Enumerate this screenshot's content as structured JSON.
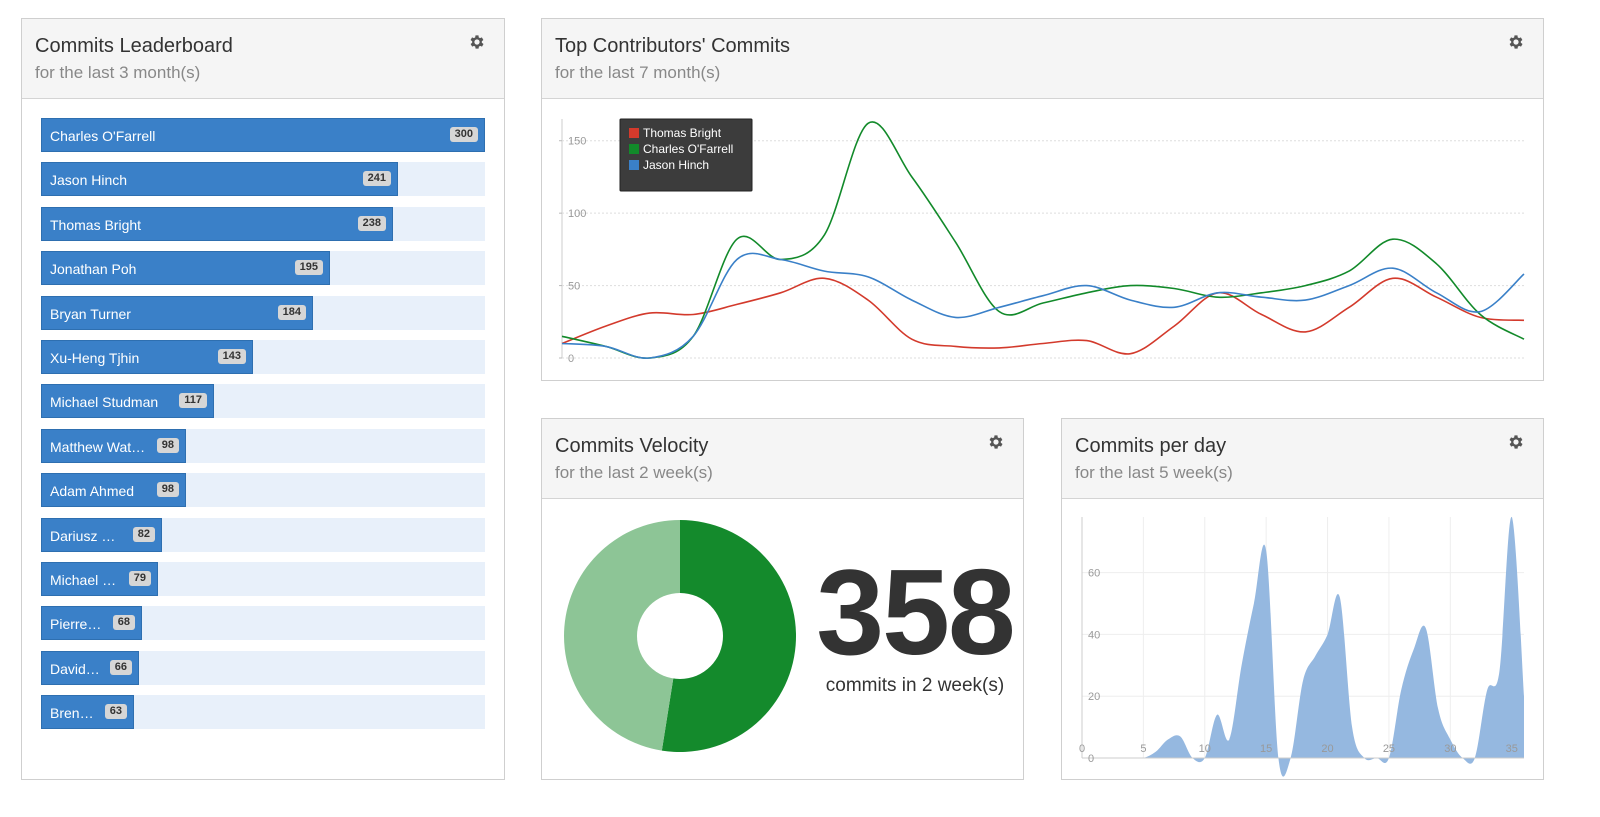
{
  "leaderboard": {
    "title": "Commits Leaderboard",
    "subtitle": "for the last 3 month(s)",
    "max": 300,
    "entries": [
      {
        "name": "Charles O'Farrell",
        "commits": 300
      },
      {
        "name": "Jason Hinch",
        "commits": 241
      },
      {
        "name": "Thomas Bright",
        "commits": 238
      },
      {
        "name": "Jonathan Poh",
        "commits": 195
      },
      {
        "name": "Bryan Turner",
        "commits": 184
      },
      {
        "name": "Xu-Heng Tjhin",
        "commits": 143
      },
      {
        "name": "Michael Studman",
        "commits": 117
      },
      {
        "name": "Matthew Watson",
        "commits": 98
      },
      {
        "name": "Adam Ahmed",
        "commits": 98
      },
      {
        "name": "Dariusz Ko…",
        "commits": 82
      },
      {
        "name": "Michael H…",
        "commits": 79
      },
      {
        "name": "Pierre-…",
        "commits": 68
      },
      {
        "name": "David …",
        "commits": 66
      },
      {
        "name": "Brent …",
        "commits": 63
      }
    ]
  },
  "contributors": {
    "title": "Top Contributors' Commits",
    "subtitle": "for the last 7 month(s)"
  },
  "velocity": {
    "title": "Commits Velocity",
    "subtitle": "for the last 2 week(s)",
    "number": "358",
    "caption": "commits in 2 week(s)"
  },
  "perday": {
    "title": "Commits per day",
    "subtitle": "for the last 5 week(s)"
  },
  "chart_data": [
    {
      "type": "bar",
      "title": "Commits Leaderboard",
      "categories": [
        "Charles O'Farrell",
        "Jason Hinch",
        "Thomas Bright",
        "Jonathan Poh",
        "Bryan Turner",
        "Xu-Heng Tjhin",
        "Michael Studman",
        "Matthew Watson",
        "Adam Ahmed",
        "Dariusz Ko…",
        "Michael H…",
        "Pierre-…",
        "David …",
        "Brent …"
      ],
      "values": [
        300,
        241,
        238,
        195,
        184,
        143,
        117,
        98,
        98,
        82,
        79,
        68,
        66,
        63
      ]
    },
    {
      "type": "line",
      "title": "Top Contributors' Commits",
      "x": [
        0,
        1,
        2,
        3,
        4,
        5,
        6,
        7,
        8,
        9,
        10,
        11,
        12,
        13,
        14,
        15,
        16,
        17,
        18,
        19,
        20,
        21,
        22
      ],
      "ylim": [
        0,
        165
      ],
      "yticks": [
        0,
        50,
        100,
        150
      ],
      "legend_position": "top-left",
      "series": [
        {
          "name": "Thomas Bright",
          "color": "#d33a2c",
          "values": [
            10,
            22,
            31,
            30,
            37,
            45,
            55,
            40,
            13,
            8,
            7,
            10,
            12,
            3,
            22,
            45,
            30,
            18,
            35,
            55,
            42,
            28,
            26
          ]
        },
        {
          "name": "Charles O'Farrell",
          "color": "#128a2a",
          "values": [
            15,
            8,
            0,
            15,
            82,
            68,
            85,
            162,
            125,
            80,
            32,
            38,
            45,
            50,
            48,
            42,
            45,
            50,
            60,
            82,
            65,
            30,
            13
          ]
        },
        {
          "name": "Jason Hinch",
          "color": "#3a80c8",
          "values": [
            10,
            8,
            0,
            15,
            68,
            68,
            60,
            56,
            40,
            28,
            35,
            43,
            50,
            40,
            35,
            45,
            42,
            40,
            50,
            62,
            45,
            32,
            58
          ]
        }
      ]
    },
    {
      "type": "pie",
      "title": "Commits Velocity",
      "values": [
        0.525,
        0.475
      ],
      "colors": [
        "#148a2c",
        "#8dc596"
      ],
      "donut": true
    },
    {
      "type": "area",
      "title": "Commits per day",
      "x": [
        0,
        1,
        2,
        3,
        4,
        5,
        6,
        7,
        8,
        9,
        10,
        11,
        12,
        13,
        14,
        15,
        16,
        17,
        18,
        19,
        20,
        21,
        22,
        23,
        24,
        25,
        26,
        27,
        28,
        29,
        30,
        31,
        32,
        33,
        34,
        35,
        36
      ],
      "values": [
        0,
        0,
        0,
        0,
        0,
        0,
        2,
        6,
        7,
        0,
        0,
        14,
        6,
        30,
        50,
        67,
        0,
        0,
        25,
        33,
        40,
        52,
        10,
        0,
        0,
        0,
        22,
        35,
        42,
        16,
        6,
        0,
        0,
        22,
        28,
        78,
        20
      ],
      "xticks": [
        0,
        5,
        10,
        15,
        20,
        25,
        30,
        35
      ],
      "yticks": [
        0,
        20,
        40,
        60
      ],
      "ylim": [
        0,
        78
      ],
      "color": "#95b8e0"
    }
  ]
}
